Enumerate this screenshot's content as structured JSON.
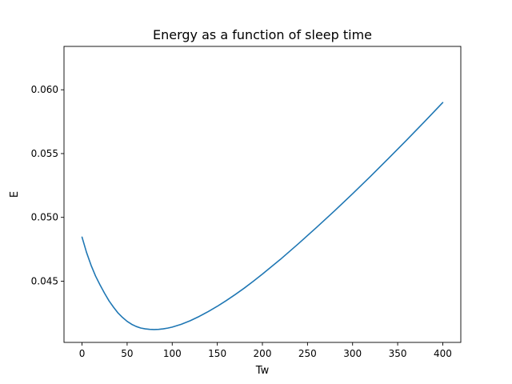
{
  "chart_data": {
    "type": "line",
    "title": "Energy as a function of sleep time",
    "xlabel": "Tw",
    "ylabel": "E",
    "xlim": [
      -20,
      420
    ],
    "ylim": [
      0.0402,
      0.0634
    ],
    "xticks": [
      0,
      50,
      100,
      150,
      200,
      250,
      300,
      350,
      400
    ],
    "xtick_labels": [
      "0",
      "50",
      "100",
      "150",
      "200",
      "250",
      "300",
      "350",
      "400"
    ],
    "yticks": [
      0.045,
      0.05,
      0.055,
      0.06
    ],
    "ytick_labels": [
      "0.045",
      "0.050",
      "0.055",
      "0.060"
    ],
    "grid": false,
    "series": [
      {
        "color": "#1f77b4",
        "x": [
          0,
          5,
          10,
          15,
          20,
          25,
          30,
          35,
          40,
          45,
          50,
          55,
          60,
          65,
          70,
          75,
          80,
          85,
          90,
          95,
          100,
          110,
          120,
          130,
          140,
          150,
          160,
          170,
          180,
          190,
          200,
          220,
          240,
          260,
          280,
          300,
          320,
          340,
          360,
          380,
          400
        ],
        "y": [
          0.04845,
          0.04725,
          0.04625,
          0.0454,
          0.0447,
          0.04405,
          0.04345,
          0.04295,
          0.0425,
          0.04215,
          0.04185,
          0.04162,
          0.04145,
          0.04133,
          0.04126,
          0.04122,
          0.04121,
          0.04122,
          0.04126,
          0.04132,
          0.0414,
          0.04162,
          0.0419,
          0.04224,
          0.04262,
          0.04303,
          0.04348,
          0.04396,
          0.04446,
          0.045,
          0.04555,
          0.04671,
          0.04794,
          0.04921,
          0.05051,
          0.05185,
          0.05322,
          0.05463,
          0.05606,
          0.05752,
          0.059
        ]
      }
    ]
  }
}
